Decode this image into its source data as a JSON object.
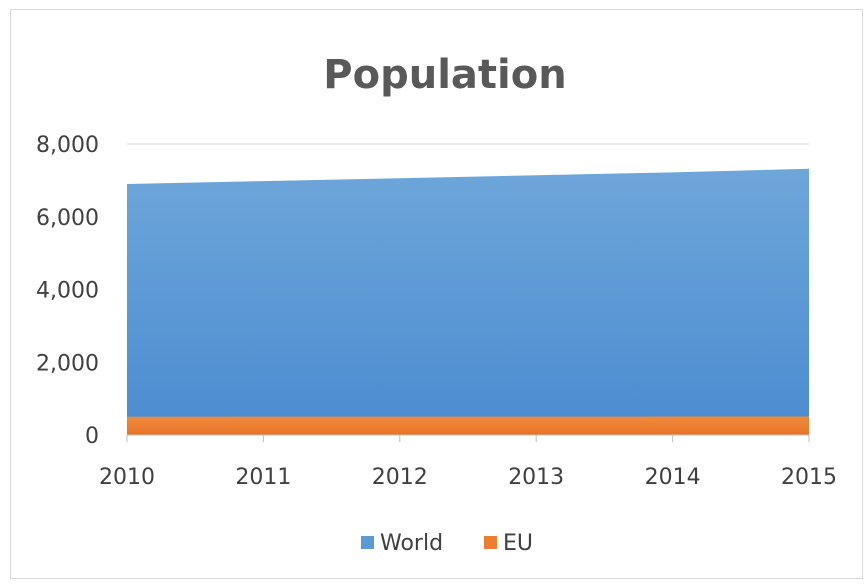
{
  "chart_data": {
    "type": "area",
    "stacked": false,
    "title": "Population",
    "xlabel": "",
    "ylabel": "",
    "x": [
      "2010",
      "2011",
      "2012",
      "2013",
      "2014",
      "2015"
    ],
    "ylim": [
      0,
      8000
    ],
    "yticks": [
      0,
      2000,
      4000,
      6000,
      8000
    ],
    "ytick_labels": [
      "0",
      "2,000",
      "4,000",
      "6,000",
      "8,000"
    ],
    "grid": true,
    "legend_position": "bottom",
    "series": [
      {
        "name": "World",
        "color": "#5b9bd5",
        "values": [
          6900,
          6980,
          7060,
          7140,
          7220,
          7320
        ]
      },
      {
        "name": "EU",
        "color": "#ed7d31",
        "values": [
          503,
          504,
          505,
          506,
          507,
          508
        ]
      }
    ]
  }
}
